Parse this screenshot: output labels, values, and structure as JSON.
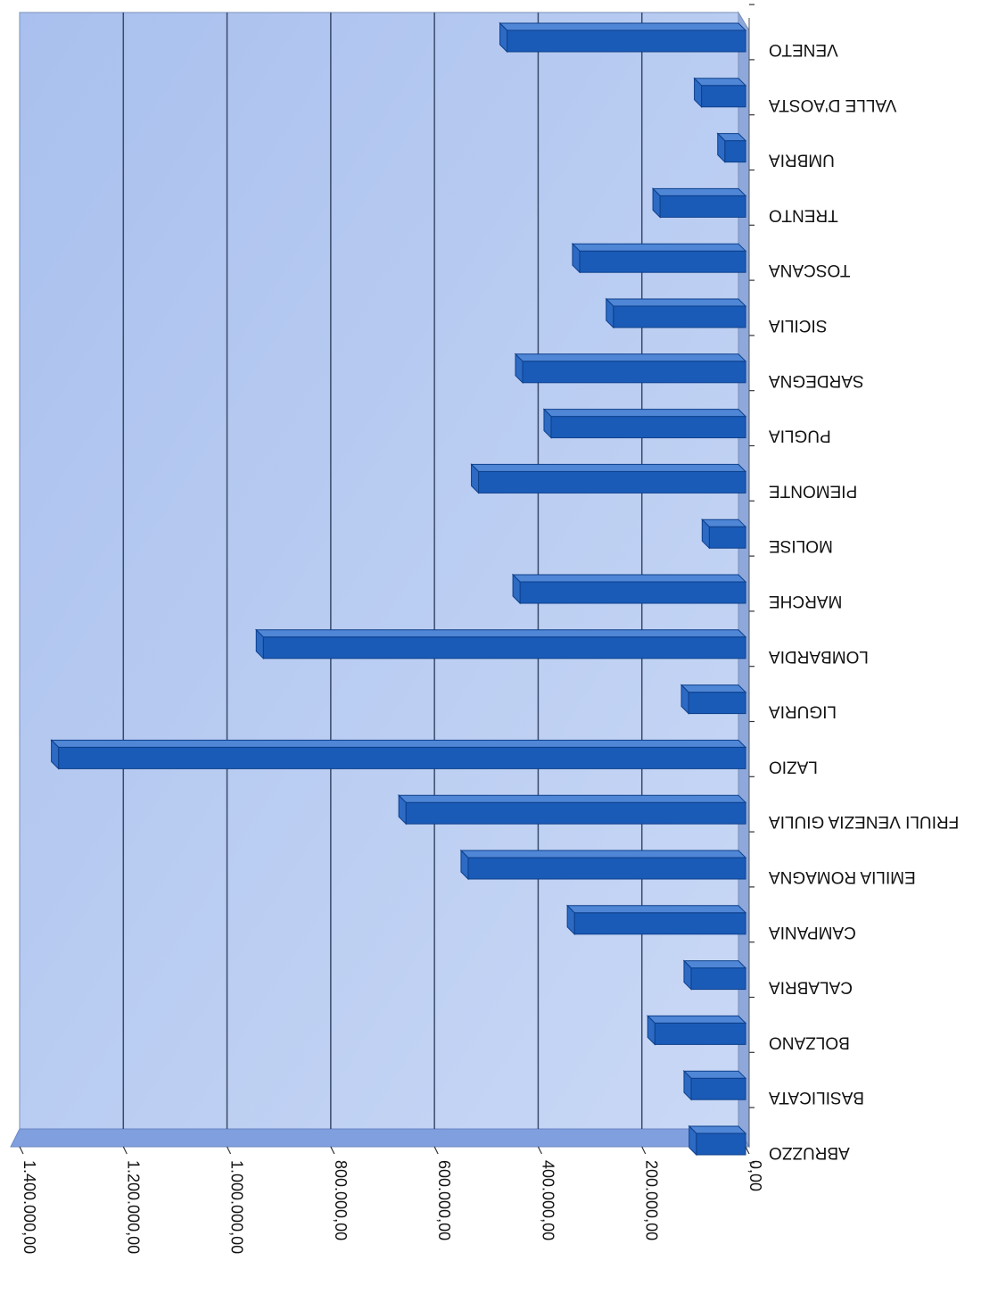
{
  "chart_data": {
    "type": "bar",
    "orientation": "horizontal",
    "title": "",
    "xlabel": "",
    "ylabel": "",
    "categories": [
      "VENETO",
      "VALLE D'AOSTA",
      "UMBRIA",
      "TRENTO",
      "TOSCANA",
      "SICILIA",
      "SARDEGNA",
      "PUGLIA",
      "PIEMONTE",
      "MOLISE",
      "MARCHE",
      "LOMBARDIA",
      "LIGURIA",
      "LAZIO",
      "FRIULI VENEZIA GIULIA",
      "EMILIA ROMAGNA",
      "CAMPANIA",
      "CALABRIA",
      "BOLZANO",
      "BASILICATA",
      "ABRUZZO"
    ],
    "values": [
      460000,
      85000,
      40000,
      165000,
      320000,
      255000,
      430000,
      375000,
      515000,
      70000,
      435000,
      930000,
      110000,
      1325000,
      655000,
      535000,
      330000,
      105000,
      175000,
      105000,
      95000
    ],
    "xlim": [
      0,
      1400000
    ],
    "tick_values": [
      0,
      200000,
      400000,
      600000,
      800000,
      1000000,
      1200000,
      1400000
    ],
    "tick_labels": [
      "0,00",
      "200.000,00",
      "400.000,00",
      "600.000,00",
      "800.000,00",
      "1.000.000,00",
      "1.200.000,00",
      "1.400.000,00"
    ],
    "grid": true,
    "colors": {
      "bar": "#1a5bb8",
      "bar_top": "#4f86d6",
      "plot_bg": "#b7ccf0",
      "floor": "#7f9fde"
    }
  }
}
